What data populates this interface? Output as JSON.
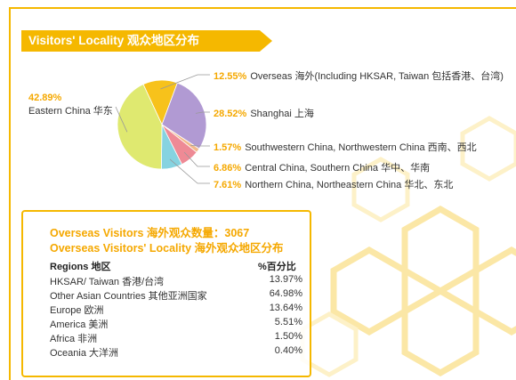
{
  "title": "Visitors' Locality 观众地区分布",
  "colors": {
    "accent": "#f5b800",
    "accent_text": "#f5a800"
  },
  "chart_data": [
    {
      "type": "pie",
      "slices": [
        {
          "value": 12.55,
          "pct_label": "12.55%",
          "label": "Overseas 海外(Including HKSAR, Taiwan 包括香港、台湾)",
          "color": "#f7c21b"
        },
        {
          "value": 28.52,
          "pct_label": "28.52%",
          "label": "Shanghai 上海",
          "color": "#b19ad3"
        },
        {
          "value": 1.57,
          "pct_label": "1.57%",
          "label": "Southwestern China, Northwestern China 西南、西北",
          "color": "#f2b98b"
        },
        {
          "value": 6.86,
          "pct_label": "6.86%",
          "label": "Central China, Southern China 华中、华南",
          "color": "#ee8a95"
        },
        {
          "value": 7.61,
          "pct_label": "7.61%",
          "label": "Northern China, Northeastern China 华北、东北",
          "color": "#86d3e0"
        },
        {
          "value": 42.89,
          "pct_label": "42.89%",
          "label": "Eastern China 华东",
          "color": "#dfe970"
        }
      ]
    },
    {
      "type": "table",
      "heading1": "Overseas Visitors 海外观众数量：3067",
      "heading2": "Overseas Visitors' Locality 海外观众地区分布",
      "columns": [
        "Regions 地区",
        "%百分比"
      ],
      "rows": [
        [
          "HKSAR/ Taiwan 香港/台湾",
          "13.97%"
        ],
        [
          "Other Asian Countries 其他亚洲国家",
          "64.98%"
        ],
        [
          "Europe 欧洲",
          "13.64%"
        ],
        [
          "America 美洲",
          "5.51%"
        ],
        [
          "Africa 非洲",
          "1.50%"
        ],
        [
          "Oceania 大洋洲",
          "0.40%"
        ]
      ]
    }
  ]
}
